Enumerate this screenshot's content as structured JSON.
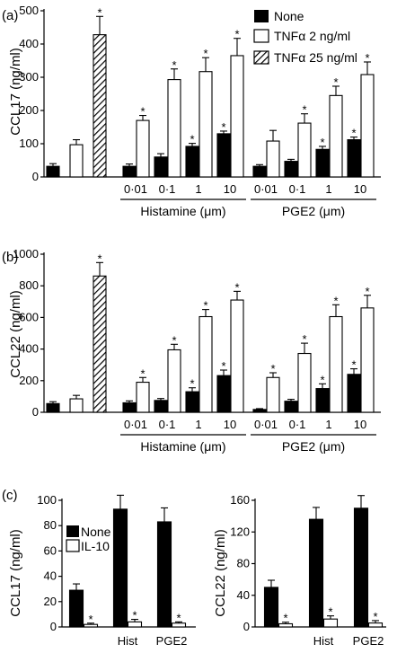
{
  "chart_data": [
    {
      "panel": "(a)",
      "type": "bar",
      "ylabel": "CCL17 (ng/ml)",
      "ylim": [
        0,
        500
      ],
      "yticks": [
        0,
        100,
        200,
        300,
        400,
        500
      ],
      "legend": {
        "placement": "top-right",
        "entries": [
          "None",
          "TNFα 2 ng/ml",
          "TNFα 25 ng/ml"
        ]
      },
      "control": {
        "none": 32,
        "none_err": 8,
        "tnf2": 97,
        "tnf2_err": 15,
        "tnf25": 428,
        "tnf25_err": 55,
        "stars": [
          "tnf25"
        ]
      },
      "groups": [
        {
          "name": "Histamine (μm)",
          "categories": [
            "0·01",
            "0·1",
            "1",
            "10"
          ],
          "none": [
            32,
            60,
            92,
            130
          ],
          "none_err": [
            7,
            10,
            9,
            8
          ],
          "tnf2": [
            170,
            293,
            317,
            365
          ],
          "tnf2_err": [
            15,
            32,
            42,
            52
          ],
          "none_star": [
            false,
            false,
            true,
            true
          ],
          "tnf2_star": [
            true,
            true,
            true,
            true
          ]
        },
        {
          "name": "PGE2 (μm)",
          "categories": [
            "0·01",
            "0·1",
            "1",
            "10"
          ],
          "none": [
            32,
            47,
            83,
            112
          ],
          "none_err": [
            5,
            6,
            9,
            8
          ],
          "tnf2": [
            108,
            162,
            245,
            308
          ],
          "tnf2_err": [
            32,
            28,
            28,
            38
          ],
          "none_star": [
            false,
            false,
            true,
            true
          ],
          "tnf2_star": [
            false,
            true,
            true,
            true
          ]
        }
      ]
    },
    {
      "panel": "(b)",
      "type": "bar",
      "ylabel": "CCL22 (ng/ml)",
      "ylim": [
        0,
        1000
      ],
      "yticks": [
        0,
        200,
        400,
        600,
        800,
        1000
      ],
      "control": {
        "none": 55,
        "none_err": 12,
        "tnf2": 85,
        "tnf2_err": 22,
        "tnf25": 862,
        "tnf25_err": 85,
        "stars": [
          "tnf25"
        ]
      },
      "groups": [
        {
          "name": "Histamine (μm)",
          "categories": [
            "0·01",
            "0·1",
            "1",
            "10"
          ],
          "none": [
            60,
            75,
            130,
            232
          ],
          "none_err": [
            12,
            12,
            25,
            35
          ],
          "tnf2": [
            190,
            395,
            605,
            710
          ],
          "tnf2_err": [
            30,
            35,
            45,
            55
          ],
          "none_star": [
            false,
            false,
            true,
            true
          ],
          "tnf2_star": [
            true,
            true,
            true,
            true
          ]
        },
        {
          "name": "PGE2 (μm)",
          "categories": [
            "0·01",
            "0·1",
            "1",
            "10"
          ],
          "none": [
            18,
            70,
            150,
            240
          ],
          "none_err": [
            5,
            12,
            30,
            35
          ],
          "tnf2": [
            220,
            372,
            605,
            660
          ],
          "tnf2_err": [
            30,
            65,
            75,
            80
          ],
          "none_star": [
            false,
            false,
            true,
            true
          ],
          "tnf2_star": [
            true,
            true,
            true,
            true
          ]
        }
      ]
    },
    {
      "panel": "(c)",
      "type": "bar",
      "ylabel": "CCL17 (ng/ml)",
      "ylim": [
        0,
        100
      ],
      "yticks": [
        0,
        20,
        40,
        60,
        80,
        100
      ],
      "legend": {
        "placement": "top-left",
        "entries": [
          "None",
          "IL-10"
        ]
      },
      "categories": [
        "",
        "Hist",
        "PGE2"
      ],
      "none": [
        29,
        93,
        83
      ],
      "none_err": [
        5,
        11,
        11
      ],
      "il10": [
        2,
        4,
        3
      ],
      "il10_err": [
        1,
        2,
        1
      ],
      "il10_star": [
        true,
        true,
        true
      ]
    },
    {
      "type": "bar",
      "ylabel": "CCL22 (ng/ml)",
      "ylim": [
        0,
        160
      ],
      "yticks": [
        0,
        40,
        80,
        120,
        160
      ],
      "categories": [
        "",
        "Hist",
        "PGE2"
      ],
      "none": [
        50,
        136,
        150
      ],
      "none_err": [
        9,
        15,
        16
      ],
      "il10": [
        4,
        10,
        5
      ],
      "il10_err": [
        2,
        4,
        3
      ],
      "il10_star": [
        true,
        true,
        true
      ]
    }
  ]
}
